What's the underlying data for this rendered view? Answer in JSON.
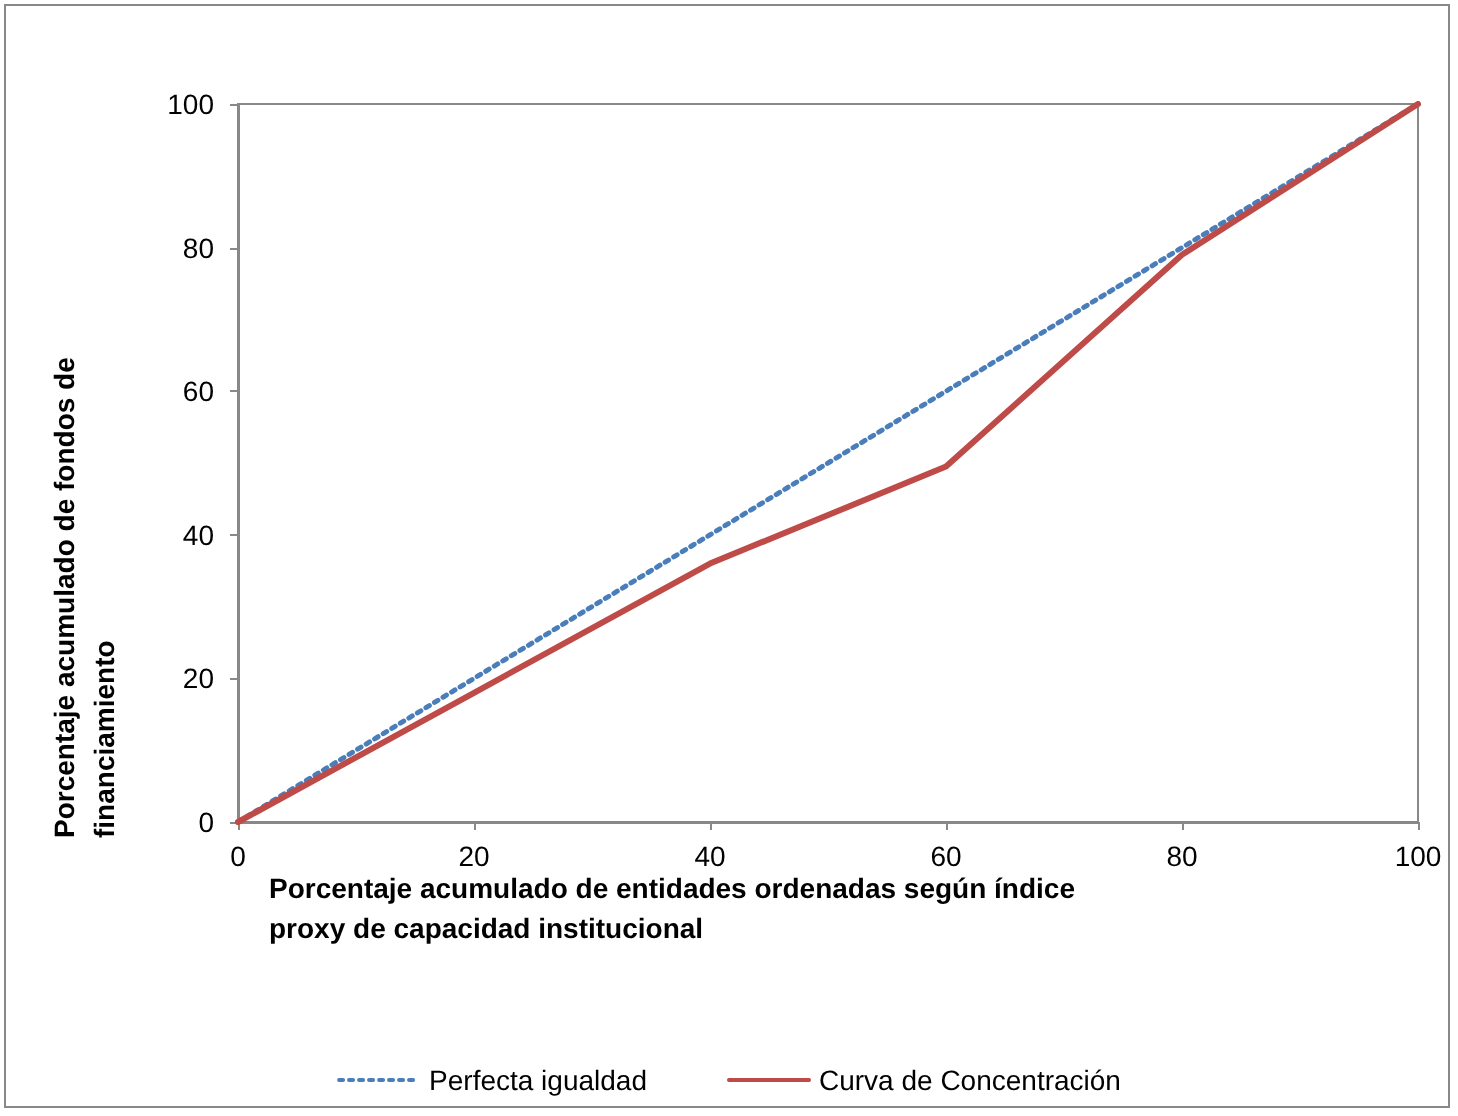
{
  "chart_data": {
    "type": "line",
    "xlabel": "Porcentaje acumulado de entidades ordenadas según índice proxy de capacidad institucional",
    "ylabel": "Porcentaje acumulado de fondos de financiamiento",
    "x": [
      0,
      20,
      40,
      60,
      80,
      100
    ],
    "series": [
      {
        "name": "Perfecta igualdad",
        "color": "#4a7ebb",
        "values": [
          0,
          20,
          40,
          60,
          80,
          100
        ],
        "line_style": "dotted"
      },
      {
        "name": "Curva de Concentración",
        "color": "#be4b48",
        "values": [
          0,
          18,
          36,
          49.5,
          79,
          100
        ],
        "line_style": "solid"
      }
    ],
    "xlim": [
      0,
      100
    ],
    "xticks": [
      0,
      20,
      40,
      60,
      80,
      100
    ],
    "ylim": [
      0,
      100
    ],
    "yticks": [
      0,
      20,
      40,
      60,
      80,
      100
    ],
    "grid": false,
    "legend": "bottom",
    "marker": "none"
  }
}
